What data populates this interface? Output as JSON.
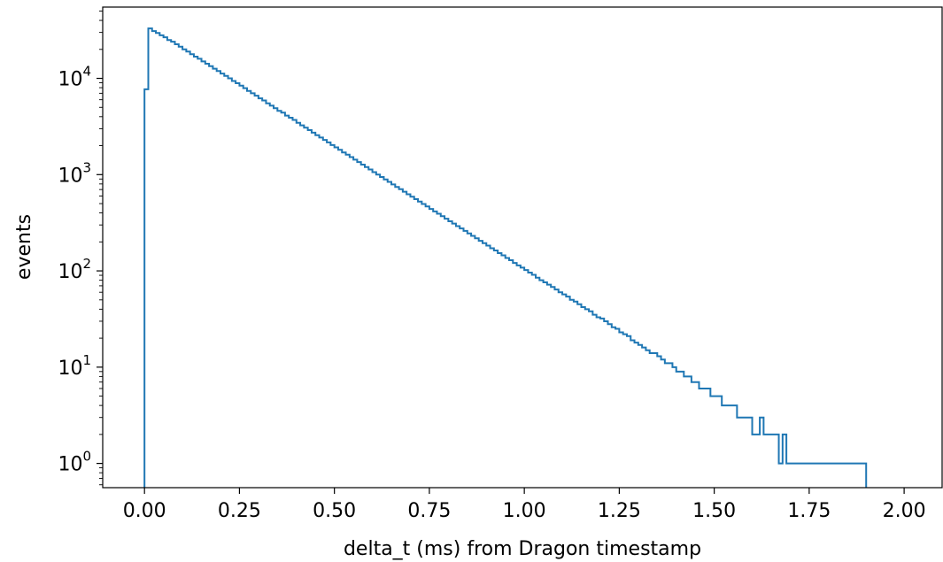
{
  "chart_data": {
    "type": "step",
    "xlabel": "delta_t (ms) from Dragon timestamp",
    "ylabel": "events",
    "xlim": [
      -0.11,
      2.1
    ],
    "ylim": [
      0.56,
      55000
    ],
    "yscale": "log",
    "grid": false,
    "color": "#1f77b4",
    "x_ticks": [
      "0.00",
      "0.25",
      "0.50",
      "0.75",
      "1.00",
      "1.25",
      "1.50",
      "1.75",
      "2.00"
    ],
    "y_ticks": [
      {
        "base": "10",
        "exp": "0",
        "value": 1
      },
      {
        "base": "10",
        "exp": "1",
        "value": 10
      },
      {
        "base": "10",
        "exp": "2",
        "value": 100
      },
      {
        "base": "10",
        "exp": "3",
        "value": 1000
      },
      {
        "base": "10",
        "exp": "4",
        "value": 10000
      }
    ],
    "bin_width": 0.01,
    "bin_start": 0.0,
    "values": [
      7700,
      33000,
      31000,
      29600,
      28000,
      26700,
      25000,
      24000,
      22600,
      21300,
      20000,
      19000,
      17800,
      16800,
      16000,
      15000,
      14200,
      13400,
      12600,
      11900,
      11200,
      10600,
      10000,
      9400,
      8900,
      8400,
      7900,
      7400,
      7000,
      6600,
      6200,
      5900,
      5500,
      5200,
      4900,
      4600,
      4400,
      4100,
      3900,
      3700,
      3450,
      3250,
      3070,
      2900,
      2730,
      2570,
      2430,
      2290,
      2160,
      2030,
      1920,
      1810,
      1700,
      1610,
      1520,
      1430,
      1350,
      1270,
      1200,
      1130,
      1060,
      1000,
      945,
      890,
      840,
      790,
      745,
      705,
      665,
      625,
      590,
      556,
      525,
      495,
      467,
      440,
      415,
      392,
      370,
      348,
      328,
      310,
      292,
      276,
      260,
      245,
      231,
      218,
      205,
      194,
      183,
      172,
      163,
      153,
      145,
      136,
      129,
      121,
      114,
      108,
      102,
      96,
      91,
      85,
      80,
      76,
      72,
      68,
      64,
      60,
      57,
      54,
      50,
      48,
      45,
      42,
      40,
      38,
      35,
      33,
      32,
      30,
      28,
      26,
      25,
      23,
      22,
      21,
      19,
      18,
      17,
      16,
      15,
      14,
      14,
      13,
      12,
      11,
      11,
      10,
      9,
      9,
      8,
      8,
      7,
      7,
      6,
      6,
      6,
      5,
      5,
      5,
      4,
      4,
      4,
      4,
      3,
      3,
      3,
      3,
      2,
      2,
      3,
      2,
      2,
      2,
      2,
      1,
      2,
      1,
      1,
      1,
      1,
      1,
      1,
      1,
      1,
      1,
      1,
      1,
      1,
      1,
      1,
      1,
      1,
      1,
      1,
      1,
      1,
      1
    ]
  }
}
